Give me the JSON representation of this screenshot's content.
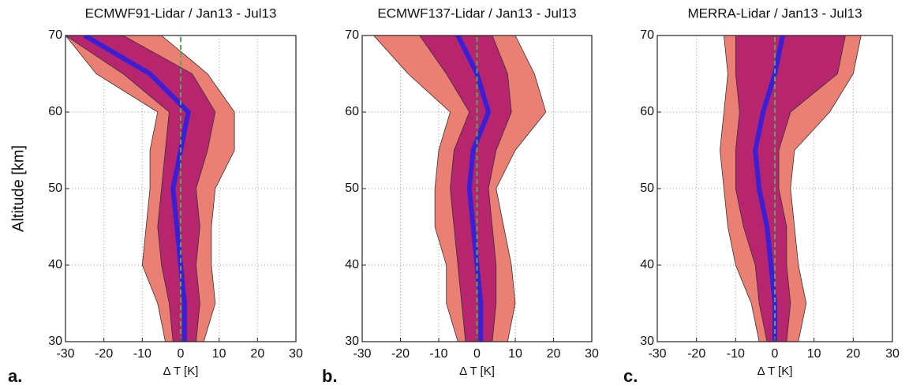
{
  "chart_data": [
    {
      "type": "profile",
      "title": "ECMWF91-Lidar / Jan13 - Jul13",
      "x_label": "Δ T [K]",
      "y_label": "Altitude [km]",
      "panel_label": "a.",
      "y": [
        30,
        35,
        40,
        45,
        50,
        55,
        60,
        65,
        70
      ],
      "bands": [
        {
          "color": "#ec7f74",
          "low": [
            -4,
            -6,
            -10,
            -9,
            -8,
            -8,
            -6,
            -22,
            -30
          ],
          "high": [
            6,
            9,
            8,
            8,
            9,
            14,
            14,
            7,
            -5
          ]
        },
        {
          "color": "#b7256f",
          "low": [
            -2,
            -3,
            -5,
            -6,
            -5,
            -4,
            -3,
            -15,
            -30
          ],
          "high": [
            4,
            5,
            4,
            5,
            4,
            7,
            9,
            3,
            -15
          ]
        }
      ],
      "series": [
        {
          "color": "#3b1fd6",
          "values": [
            1,
            1,
            0,
            -1,
            -2,
            0,
            2,
            -8,
            -25
          ]
        },
        {
          "color": "#4caf50",
          "values": [
            0,
            0,
            0,
            0,
            0,
            0,
            0,
            0,
            0
          ]
        }
      ],
      "xlim": [
        -30,
        30
      ],
      "xticks": [
        -30,
        -20,
        -10,
        0,
        10,
        20,
        30
      ],
      "ylim": [
        30,
        70
      ],
      "yticks": [
        30,
        40,
        50,
        60,
        70
      ],
      "grid": true
    },
    {
      "type": "profile",
      "title": "ECMWF137-Lidar / Jan13 - Jul13",
      "x_label": "Δ T [K]",
      "panel_label": "b.",
      "y": [
        30,
        35,
        40,
        45,
        50,
        55,
        60,
        65,
        70
      ],
      "bands": [
        {
          "color": "#ec7f74",
          "low": [
            -5,
            -8,
            -8,
            -11,
            -11,
            -10,
            -7,
            -18,
            -27
          ],
          "high": [
            8,
            10,
            9,
            7,
            5,
            10,
            18,
            15,
            10
          ]
        },
        {
          "color": "#b7256f",
          "low": [
            -3,
            -4,
            -5,
            -6,
            -7,
            -6,
            -2,
            -8,
            -15
          ],
          "high": [
            4,
            5,
            5,
            4,
            3,
            5,
            9,
            8,
            4
          ]
        }
      ],
      "series": [
        {
          "color": "#3b1fd6",
          "values": [
            1,
            1,
            0,
            -1,
            -2,
            -1,
            3,
            0,
            -5
          ]
        },
        {
          "color": "#4caf50",
          "values": [
            0,
            0,
            0,
            0,
            0,
            0,
            0,
            0,
            0
          ]
        }
      ],
      "xlim": [
        -30,
        30
      ],
      "xticks": [
        -30,
        -20,
        -10,
        0,
        10,
        20,
        30
      ],
      "ylim": [
        30,
        70
      ],
      "yticks": [
        30,
        40,
        50,
        60,
        70
      ],
      "grid": true
    },
    {
      "type": "profile",
      "title": "MERRA-Lidar / Jan13 - Jul13",
      "x_label": "Δ T [K]",
      "panel_label": "c.",
      "y": [
        30,
        35,
        40,
        45,
        50,
        55,
        60,
        65,
        70
      ],
      "bands": [
        {
          "color": "#ec7f74",
          "low": [
            -4,
            -6,
            -10,
            -12,
            -13,
            -14,
            -13,
            -12,
            -13
          ],
          "high": [
            6,
            8,
            6,
            5,
            4,
            5,
            14,
            20,
            22
          ]
        },
        {
          "color": "#b7256f",
          "low": [
            -2,
            -4,
            -5,
            -8,
            -10,
            -10,
            -9,
            -10,
            -10
          ],
          "high": [
            3,
            4,
            3,
            3,
            1,
            1,
            4,
            16,
            18
          ]
        }
      ],
      "series": [
        {
          "color": "#3b1fd6",
          "values": [
            0,
            0,
            -1,
            -2,
            -4,
            -5,
            -3,
            0,
            2
          ]
        },
        {
          "color": "#4caf50",
          "values": [
            0,
            0,
            0,
            0,
            0,
            0,
            0,
            0,
            0
          ]
        }
      ],
      "xlim": [
        -30,
        30
      ],
      "xticks": [
        -30,
        -20,
        -10,
        0,
        10,
        20,
        30
      ],
      "ylim": [
        30,
        70
      ],
      "yticks": [
        30,
        40,
        50,
        60,
        70
      ],
      "grid": true
    }
  ]
}
